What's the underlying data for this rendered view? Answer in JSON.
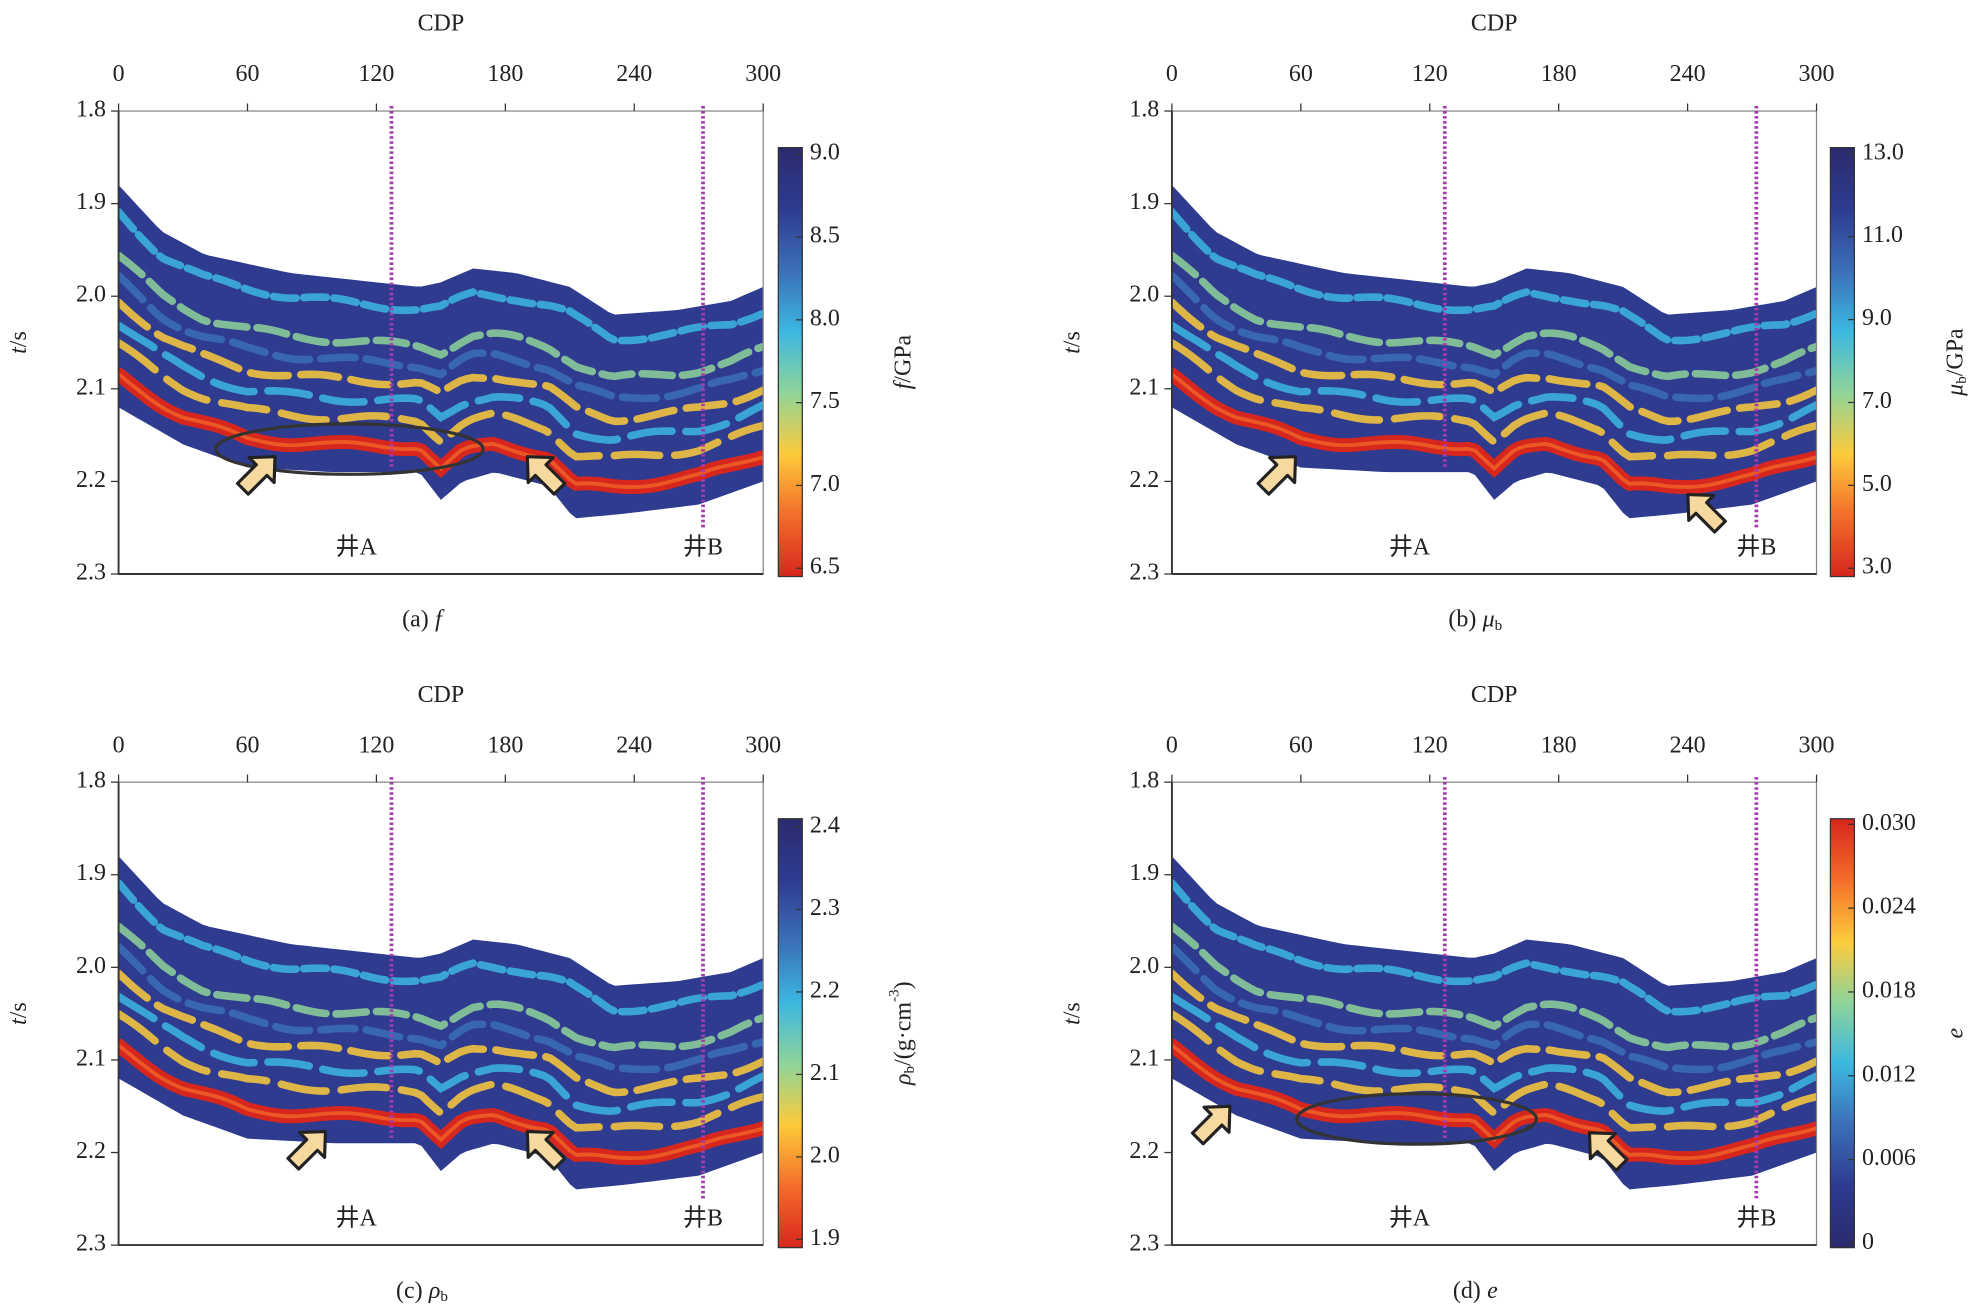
{
  "chart_data": [
    {
      "type": "heatmap",
      "xlabel": "CDP",
      "ylabel": {
        "symbol": "t",
        "unit": "/s"
      },
      "xlim": [
        0,
        300
      ],
      "xticks": [
        0,
        60,
        120,
        180,
        240,
        300
      ],
      "ylim": [
        1.8,
        2.3
      ],
      "yticks": [
        1.8,
        1.9,
        {
          "value": 2,
          "label": "2.0"
        },
        2.1,
        2.2,
        2.3
      ],
      "y_inverted": true,
      "colorbar_lim": [
        6.45,
        9.04
      ],
      "colorbar_ticks": [
        {
          "value": 9,
          "label": "9.0"
        },
        8.5,
        {
          "value": 8,
          "label": "8.0"
        },
        7.5,
        {
          "value": 7,
          "label": "7.0"
        },
        6.5
      ],
      "colorbar_label": {
        "symbol": "f",
        "unit": "/GPa"
      },
      "colormap": [
        "#d7261e",
        "#f46d2a",
        "#fdcb3b",
        "#8fd49a",
        "#3cb7e0",
        "#3b6fb6",
        "#2e3b8f",
        "#2b2a6e"
      ],
      "wells": [
        {
          "name": "井A",
          "cdp": 127
        },
        {
          "name": "井B",
          "cdp": 272
        }
      ],
      "caption": {
        "prefix": "(a)",
        "symbol": "f"
      }
    },
    {
      "type": "heatmap",
      "xlabel": "CDP",
      "ylabel": {
        "symbol": "t",
        "unit": "/s"
      },
      "xlim": [
        0,
        300
      ],
      "xticks": [
        0,
        60,
        120,
        180,
        240,
        300
      ],
      "ylim": [
        1.8,
        2.3
      ],
      "yticks": [
        1.8,
        1.9,
        {
          "value": 2,
          "label": "2.0"
        },
        2.1,
        2.2,
        2.3
      ],
      "y_inverted": true,
      "colorbar_lim": [
        2.8,
        13.15
      ],
      "colorbar_ticks": [
        {
          "value": 13,
          "label": "13.0"
        },
        {
          "value": 11,
          "label": "11.0"
        },
        {
          "value": 9,
          "label": "9.0"
        },
        {
          "value": 7,
          "label": "7.0"
        },
        {
          "value": 5,
          "label": "5.0"
        },
        {
          "value": 3,
          "label": "3.0"
        }
      ],
      "colorbar_label": {
        "symbol": "μ",
        "subscript": "b",
        "unit": "/GPa"
      },
      "colormap": [
        "#d7261e",
        "#f46d2a",
        "#fdcb3b",
        "#8fd49a",
        "#3cb7e0",
        "#3b6fb6",
        "#2e3b8f",
        "#2b2a6e"
      ],
      "wells": [
        {
          "name": "井A",
          "cdp": 127
        },
        {
          "name": "井B",
          "cdp": 272
        }
      ],
      "caption": {
        "prefix": "(b)",
        "symbol": "μ",
        "subscript": "b"
      }
    },
    {
      "type": "heatmap",
      "xlabel": "CDP",
      "ylabel": {
        "symbol": "t",
        "unit": "/s"
      },
      "xlim": [
        0,
        300
      ],
      "xticks": [
        0,
        60,
        120,
        180,
        240,
        300
      ],
      "ylim": [
        1.8,
        2.3
      ],
      "yticks": [
        1.8,
        1.9,
        {
          "value": 2,
          "label": "2.0"
        },
        2.1,
        2.2,
        2.3
      ],
      "y_inverted": true,
      "colorbar_lim": [
        1.89,
        2.41
      ],
      "colorbar_ticks": [
        2.4,
        2.3,
        2.2,
        2.1,
        {
          "value": 2,
          "label": "2.0"
        },
        1.9
      ],
      "colorbar_label": {
        "symbol": "ρ",
        "subscript": "b",
        "unit": "/(g·cm",
        "superscript": "-3",
        "unit_end": ")"
      },
      "colormap": [
        "#d7261e",
        "#f46d2a",
        "#fdcb3b",
        "#8fd49a",
        "#3cb7e0",
        "#3b6fb6",
        "#2e3b8f",
        "#2b2a6e"
      ],
      "wells": [
        {
          "name": "井A",
          "cdp": 127
        },
        {
          "name": "井B",
          "cdp": 272
        }
      ],
      "caption": {
        "prefix": "(c)",
        "symbol": "ρ",
        "subscript": "b"
      }
    },
    {
      "type": "heatmap",
      "xlabel": "CDP",
      "ylabel": {
        "symbol": "t",
        "unit": "/s"
      },
      "xlim": [
        0,
        300
      ],
      "xticks": [
        0,
        60,
        120,
        180,
        240,
        300
      ],
      "ylim": [
        1.8,
        2.3
      ],
      "yticks": [
        1.8,
        1.9,
        {
          "value": 2,
          "label": "2.0"
        },
        2.1,
        2.2,
        2.3
      ],
      "y_inverted": true,
      "colorbar_lim": [
        -0.0003,
        0.0304
      ],
      "colorbar_ticks": [
        {
          "value": 0.03,
          "label": "0.030"
        },
        0.024,
        0.018,
        0.012,
        0.006,
        0
      ],
      "colorbar_label": {
        "symbol": "e"
      },
      "colormap": [
        "#2b2a6e",
        "#2e3b8f",
        "#3b6fb6",
        "#3cb7e0",
        "#8fd49a",
        "#fdcb3b",
        "#f46d2a",
        "#d7261e"
      ],
      "wells": [
        {
          "name": "井A",
          "cdp": 127
        },
        {
          "name": "井B",
          "cdp": 272
        }
      ],
      "caption": {
        "prefix": "(d)",
        "symbol": "e"
      }
    }
  ]
}
